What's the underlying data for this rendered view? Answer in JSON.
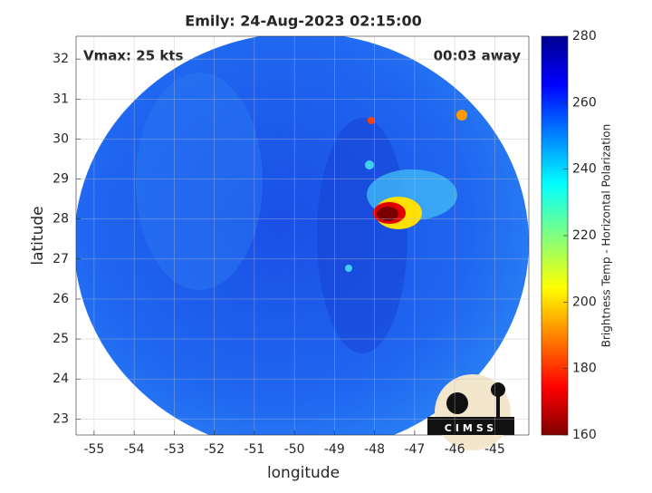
{
  "chart_data": {
    "type": "image",
    "title": "Emily: 24-Aug-2023 02:15:00",
    "annotations": [
      "Vmax: 25 kts",
      "00:03 away"
    ],
    "xlabel": "longitude",
    "ylabel": "latitude",
    "xlim": [
      -55.45,
      -44.15
    ],
    "xticks": [
      -55,
      -54,
      -53,
      -52,
      -51,
      -50,
      -49,
      -48,
      -47,
      -46,
      -45
    ],
    "ylim": [
      22.6,
      32.57
    ],
    "yticks": [
      23,
      24,
      25,
      26,
      27,
      28,
      29,
      30,
      31,
      32
    ],
    "grid": true,
    "colorbar": {
      "label": "Brightness Temp - Horizontal Polarization",
      "clim": [
        160,
        280
      ],
      "ticks": [
        160,
        180,
        200,
        220,
        240,
        260,
        280
      ]
    },
    "logo": "CIMSS"
  }
}
